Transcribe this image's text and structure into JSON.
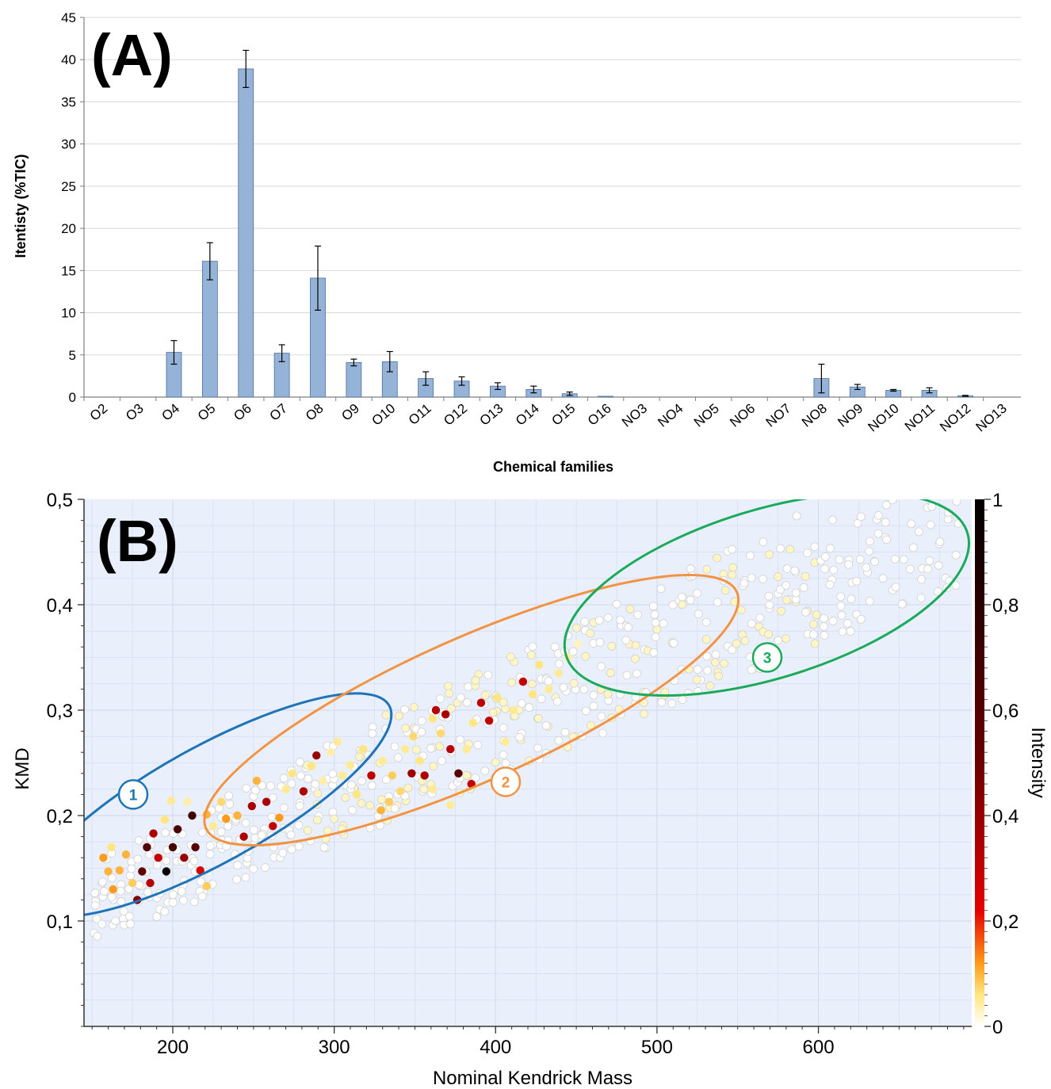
{
  "chart_data": [
    {
      "type": "bar",
      "panel_label": "(A)",
      "xlabel": "Chemical families",
      "ylabel": "Itentisty (%TIC)",
      "ylim": [
        0,
        45
      ],
      "yticks": [
        0,
        5,
        10,
        15,
        20,
        25,
        30,
        35,
        40,
        45
      ],
      "grid": "horizontal",
      "bar_color": "#95b3d7",
      "categories": [
        "O2",
        "O3",
        "O4",
        "O5",
        "O6",
        "O7",
        "O8",
        "O9",
        "O10",
        "O11",
        "O12",
        "O13",
        "O14",
        "O15",
        "O16",
        "NO3",
        "NO4",
        "NO5",
        "NO6",
        "NO7",
        "NO8",
        "NO9",
        "NO10",
        "NO11",
        "NO12",
        "NO13"
      ],
      "values": [
        0,
        0,
        5.3,
        16.1,
        38.9,
        5.2,
        14.1,
        4.1,
        4.2,
        2.2,
        1.9,
        1.3,
        0.9,
        0.4,
        0.1,
        0,
        0,
        0,
        0,
        0,
        2.2,
        1.2,
        0.8,
        0.8,
        0.15,
        0
      ],
      "errors": [
        0,
        0,
        1.4,
        2.2,
        2.2,
        1.0,
        3.8,
        0.4,
        1.2,
        0.8,
        0.5,
        0.4,
        0.4,
        0.2,
        0,
        0,
        0,
        0,
        0,
        0,
        1.7,
        0.3,
        0.1,
        0.3,
        0.05,
        0
      ]
    },
    {
      "type": "scatter",
      "panel_label": "(B)",
      "xlabel": "Nominal Kendrick Mass",
      "ylabel": "KMD",
      "xlim": [
        145,
        695
      ],
      "ylim": [
        0.0,
        0.5
      ],
      "xticks": [
        200,
        300,
        400,
        500,
        600
      ],
      "ytick_labels": [
        "0,1",
        "0,2",
        "0,3",
        "0,4",
        "0,5"
      ],
      "yticks": [
        0.1,
        0.2,
        0.3,
        0.4,
        0.5
      ],
      "background": "#eaf0fb",
      "colorbar": {
        "label": "Intensity",
        "range": [
          0,
          1
        ],
        "tick_labels": [
          "0",
          "0,2",
          "0,4",
          "0,6",
          "0,8",
          "1"
        ],
        "ticks": [
          0,
          0.2,
          0.4,
          0.6,
          0.8,
          1
        ],
        "colormap": [
          "#ffffff",
          "#ffe680",
          "#ff9a1a",
          "#e60000",
          "#6b0000",
          "#000000"
        ]
      },
      "groups": [
        {
          "label": "1",
          "color": "#1f74b8",
          "center": [
            223,
            0.21
          ],
          "semi_axes": [
            127,
            0.055
          ],
          "angle_deg": -29
        },
        {
          "label": "2",
          "color": "#f29344",
          "center": [
            385,
            0.3
          ],
          "semi_axes": [
            180,
            0.068
          ],
          "angle_deg": -24
        },
        {
          "label": "3",
          "color": "#1aaa5a",
          "center": [
            568,
            0.41
          ],
          "semi_axes": [
            130,
            0.08
          ],
          "angle_deg": -17
        }
      ],
      "points": [
        {
          "x": 163,
          "y": 0.13,
          "v": 0.12
        },
        {
          "x": 167,
          "y": 0.148,
          "v": 0.1
        },
        {
          "x": 171,
          "y": 0.163,
          "v": 0.1
        },
        {
          "x": 175,
          "y": 0.136,
          "v": 0.08
        },
        {
          "x": 157,
          "y": 0.16,
          "v": 0.12
        },
        {
          "x": 160,
          "y": 0.147,
          "v": 0.1
        },
        {
          "x": 162,
          "y": 0.17,
          "v": 0.06
        },
        {
          "x": 178,
          "y": 0.12,
          "v": 0.45
        },
        {
          "x": 181,
          "y": 0.147,
          "v": 0.55
        },
        {
          "x": 184,
          "y": 0.17,
          "v": 0.6
        },
        {
          "x": 188,
          "y": 0.183,
          "v": 0.35
        },
        {
          "x": 191,
          "y": 0.16,
          "v": 0.3
        },
        {
          "x": 186,
          "y": 0.136,
          "v": 0.33
        },
        {
          "x": 196,
          "y": 0.147,
          "v": 0.95
        },
        {
          "x": 200,
          "y": 0.17,
          "v": 0.65
        },
        {
          "x": 203,
          "y": 0.187,
          "v": 0.65
        },
        {
          "x": 207,
          "y": 0.16,
          "v": 0.4
        },
        {
          "x": 212,
          "y": 0.2,
          "v": 0.7
        },
        {
          "x": 214,
          "y": 0.17,
          "v": 0.6
        },
        {
          "x": 217,
          "y": 0.148,
          "v": 0.25
        },
        {
          "x": 221,
          "y": 0.133,
          "v": 0.08
        },
        {
          "x": 225,
          "y": 0.19,
          "v": 0.05
        },
        {
          "x": 230,
          "y": 0.213,
          "v": 0.07
        },
        {
          "x": 195,
          "y": 0.196,
          "v": 0.06
        },
        {
          "x": 199,
          "y": 0.214,
          "v": 0.05
        },
        {
          "x": 209,
          "y": 0.213,
          "v": 0.04
        },
        {
          "x": 221,
          "y": 0.201,
          "v": 0.1
        },
        {
          "x": 233,
          "y": 0.197,
          "v": 0.12
        },
        {
          "x": 240,
          "y": 0.2,
          "v": 0.1
        },
        {
          "x": 244,
          "y": 0.18,
          "v": 0.35
        },
        {
          "x": 249,
          "y": 0.209,
          "v": 0.36
        },
        {
          "x": 252,
          "y": 0.233,
          "v": 0.1
        },
        {
          "x": 258,
          "y": 0.213,
          "v": 0.35
        },
        {
          "x": 262,
          "y": 0.19,
          "v": 0.3
        },
        {
          "x": 266,
          "y": 0.198,
          "v": 0.12
        },
        {
          "x": 270,
          "y": 0.225,
          "v": 0.05
        },
        {
          "x": 274,
          "y": 0.24,
          "v": 0.06
        },
        {
          "x": 281,
          "y": 0.223,
          "v": 0.35
        },
        {
          "x": 286,
          "y": 0.247,
          "v": 0.06
        },
        {
          "x": 293,
          "y": 0.233,
          "v": 0.04
        },
        {
          "x": 298,
          "y": 0.26,
          "v": 0.04
        },
        {
          "x": 302,
          "y": 0.27,
          "v": 0.05
        },
        {
          "x": 310,
          "y": 0.248,
          "v": 0.05
        },
        {
          "x": 318,
          "y": 0.263,
          "v": 0.06
        },
        {
          "x": 323,
          "y": 0.238,
          "v": 0.32
        },
        {
          "x": 330,
          "y": 0.252,
          "v": 0.05
        },
        {
          "x": 336,
          "y": 0.238,
          "v": 0.08
        },
        {
          "x": 341,
          "y": 0.223,
          "v": 0.07
        },
        {
          "x": 344,
          "y": 0.263,
          "v": 0.05
        },
        {
          "x": 349,
          "y": 0.275,
          "v": 0.07
        },
        {
          "x": 353,
          "y": 0.252,
          "v": 0.06
        },
        {
          "x": 356,
          "y": 0.238,
          "v": 0.35
        },
        {
          "x": 361,
          "y": 0.292,
          "v": 0.06
        },
        {
          "x": 366,
          "y": 0.278,
          "v": 0.07
        },
        {
          "x": 372,
          "y": 0.263,
          "v": 0.32
        },
        {
          "x": 377,
          "y": 0.24,
          "v": 0.6
        },
        {
          "x": 382,
          "y": 0.263,
          "v": 0.05
        },
        {
          "x": 386,
          "y": 0.288,
          "v": 0.06
        },
        {
          "x": 391,
          "y": 0.307,
          "v": 0.32
        },
        {
          "x": 396,
          "y": 0.29,
          "v": 0.3
        },
        {
          "x": 401,
          "y": 0.312,
          "v": 0.06
        },
        {
          "x": 406,
          "y": 0.27,
          "v": 0.05
        },
        {
          "x": 411,
          "y": 0.3,
          "v": 0.05
        },
        {
          "x": 417,
          "y": 0.327,
          "v": 0.3
        },
        {
          "x": 423,
          "y": 0.315,
          "v": 0.06
        },
        {
          "x": 427,
          "y": 0.343,
          "v": 0.06
        },
        {
          "x": 433,
          "y": 0.32,
          "v": 0.05
        },
        {
          "x": 439,
          "y": 0.335,
          "v": 0.05
        },
        {
          "x": 445,
          "y": 0.35,
          "v": 0.04
        },
        {
          "x": 451,
          "y": 0.363,
          "v": 0.03
        },
        {
          "x": 404,
          "y": 0.24,
          "v": 0.34
        },
        {
          "x": 385,
          "y": 0.23,
          "v": 0.3
        },
        {
          "x": 372,
          "y": 0.21,
          "v": 0.05
        },
        {
          "x": 361,
          "y": 0.225,
          "v": 0.05
        },
        {
          "x": 334,
          "y": 0.213,
          "v": 0.08
        },
        {
          "x": 329,
          "y": 0.205,
          "v": 0.1
        },
        {
          "x": 314,
          "y": 0.22,
          "v": 0.06
        },
        {
          "x": 305,
          "y": 0.238,
          "v": 0.05
        },
        {
          "x": 289,
          "y": 0.257,
          "v": 0.4
        },
        {
          "x": 348,
          "y": 0.24,
          "v": 0.38
        },
        {
          "x": 363,
          "y": 0.3,
          "v": 0.33
        },
        {
          "x": 369,
          "y": 0.296,
          "v": 0.36
        }
      ],
      "background_points_note": ""
    }
  ]
}
